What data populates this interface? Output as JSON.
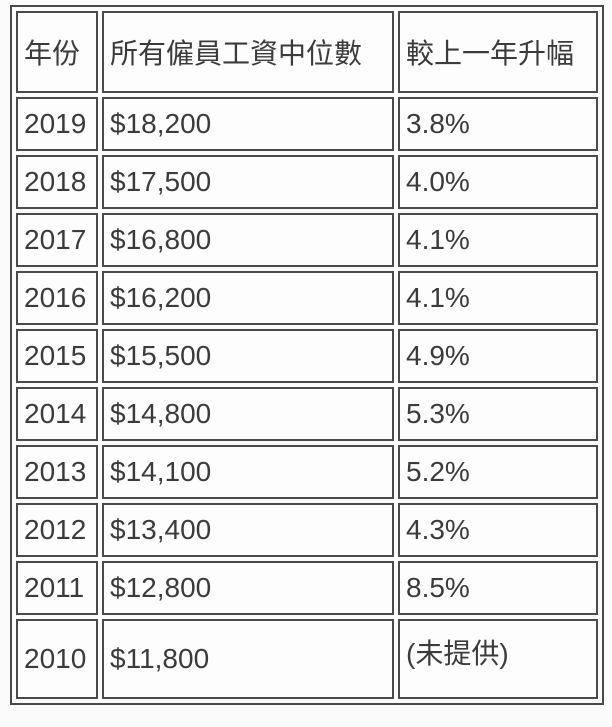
{
  "table": {
    "columns": [
      {
        "key": "year",
        "label": "年份"
      },
      {
        "key": "median",
        "label": "所有僱員工資中位數"
      },
      {
        "key": "change",
        "label": "較上一年升幅"
      }
    ],
    "rows": [
      {
        "year": "2019",
        "median": "$18,200",
        "change": "3.8%"
      },
      {
        "year": "2018",
        "median": "$17,500",
        "change": "4.0%"
      },
      {
        "year": "2017",
        "median": "$16,800",
        "change": "4.1%"
      },
      {
        "year": "2016",
        "median": "$16,200",
        "change": "4.1%"
      },
      {
        "year": "2015",
        "median": "$15,500",
        "change": "4.9%"
      },
      {
        "year": "2014",
        "median": "$14,800",
        "change": "5.3%"
      },
      {
        "year": "2013",
        "median": "$14,100",
        "change": "5.2%"
      },
      {
        "year": "2012",
        "median": "$13,400",
        "change": "4.3%"
      },
      {
        "year": "2011",
        "median": "$12,800",
        "change": "8.5%"
      },
      {
        "year": "2010",
        "median": "$11,800",
        "change": "(未提供)"
      }
    ]
  }
}
